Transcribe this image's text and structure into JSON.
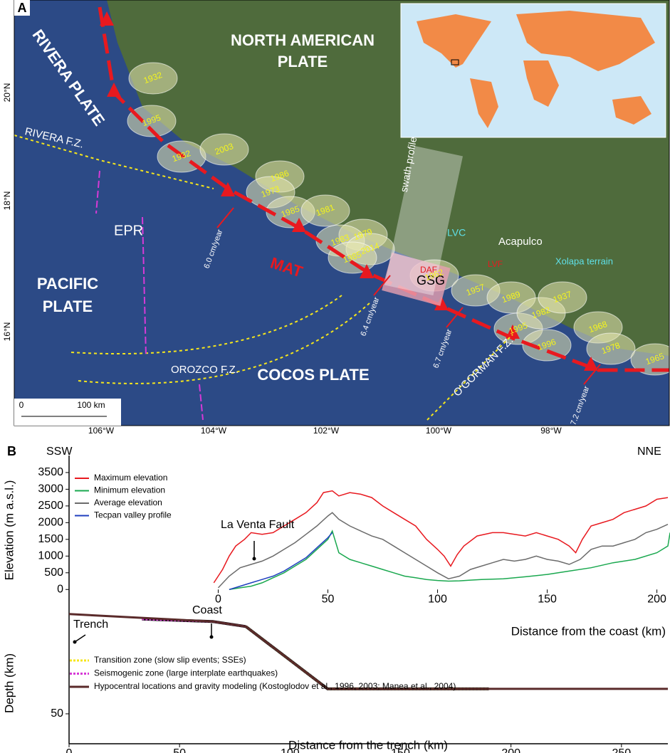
{
  "map": {
    "panel_label": "A",
    "plates": [
      "NORTH AMERICAN",
      "PLATE",
      "RIVERA PLATE",
      "PACIFIC",
      "PLATE",
      "COCOS PLATE"
    ],
    "features": [
      "RIVERA F.Z.",
      "EPR",
      "MAT",
      "OROZCO F.Z.",
      "O'GORMAN F.Z.",
      "GSG",
      "LVC",
      "Acapulco",
      "DAF",
      "LVF",
      "Xolapa terrain",
      "swath profile"
    ],
    "rates": [
      "6.0 cm/year",
      "6.4 cm/year",
      "6.7 cm/year",
      "7.2 cm/year"
    ],
    "years": [
      "1932",
      "1995",
      "1932",
      "2003",
      "1986",
      "1973",
      "1985",
      "1981",
      "1979",
      "1983",
      "2014",
      "1985",
      "1962",
      "1957",
      "1989",
      "1995",
      "1982",
      "1937",
      "1996",
      "1968",
      "1978",
      "1965"
    ],
    "lat_labels": [
      "20°N",
      "18°N",
      "16°N"
    ],
    "lon_labels": [
      "106°W",
      "104°W",
      "102°W",
      "100°W",
      "98°W"
    ],
    "scale_labels": [
      "0",
      "100 km"
    ]
  },
  "chart_data": [
    {
      "type": "line",
      "panel_label": "B",
      "y_label": "Elevation (m a.s.l.)",
      "x_label": "Distance from the coast (km)",
      "annotations": [
        "SSW",
        "NNE",
        "La Venta Fault",
        "Coast",
        "Trench"
      ],
      "xlim": [
        -68,
        205
      ],
      "xticks": [
        0,
        50,
        100,
        150,
        200
      ],
      "ylim": [
        -250,
        3690
      ],
      "yticks": [
        0,
        500,
        1000,
        1500,
        2000,
        2500,
        3000,
        3500
      ],
      "series": [
        {
          "name": "Maximum elevation",
          "color": "#e8191f",
          "x": [
            -2,
            2,
            5,
            8,
            12,
            15,
            20,
            25,
            30,
            35,
            40,
            45,
            48,
            52,
            55,
            60,
            65,
            70,
            75,
            80,
            85,
            90,
            95,
            100,
            103,
            106,
            109,
            112,
            118,
            125,
            130,
            135,
            140,
            145,
            150,
            155,
            160,
            163,
            166,
            170,
            175,
            180,
            185,
            190,
            195,
            200,
            205
          ],
          "values": [
            200,
            600,
            1000,
            1300,
            1500,
            1700,
            1650,
            1700,
            1900,
            2100,
            2300,
            2600,
            2900,
            2950,
            2800,
            2900,
            2850,
            2750,
            2500,
            2300,
            2100,
            1900,
            1500,
            1200,
            1000,
            700,
            1050,
            1300,
            1600,
            1700,
            1700,
            1650,
            1600,
            1700,
            1600,
            1500,
            1300,
            1100,
            1500,
            1900,
            2000,
            2100,
            2300,
            2400,
            2500,
            2700,
            2750
          ]
        },
        {
          "name": "Minimum elevation",
          "color": "#1aa84f",
          "x": [
            5,
            10,
            15,
            20,
            25,
            30,
            35,
            40,
            45,
            50,
            52,
            55,
            60,
            65,
            70,
            75,
            80,
            85,
            90,
            95,
            100,
            105,
            110,
            115,
            120,
            130,
            140,
            150,
            160,
            170,
            180,
            190,
            200,
            205,
            206
          ],
          "values": [
            0,
            50,
            100,
            200,
            350,
            500,
            700,
            900,
            1200,
            1500,
            1750,
            1100,
            900,
            800,
            700,
            600,
            500,
            400,
            350,
            300,
            270,
            250,
            260,
            280,
            300,
            320,
            380,
            450,
            550,
            650,
            800,
            900,
            1100,
            1300,
            1700
          ]
        },
        {
          "name": "Average elevation",
          "color": "#6b6b6b",
          "x": [
            0,
            5,
            10,
            15,
            20,
            25,
            30,
            35,
            40,
            45,
            50,
            52,
            55,
            60,
            65,
            70,
            75,
            80,
            85,
            90,
            95,
            100,
            105,
            110,
            115,
            120,
            125,
            130,
            135,
            140,
            145,
            150,
            155,
            160,
            165,
            170,
            175,
            180,
            185,
            190,
            195,
            200,
            205
          ],
          "values": [
            50,
            400,
            650,
            750,
            850,
            1000,
            1200,
            1400,
            1650,
            1900,
            2200,
            2300,
            2100,
            1900,
            1750,
            1600,
            1500,
            1300,
            1100,
            900,
            700,
            500,
            320,
            400,
            600,
            700,
            800,
            900,
            850,
            900,
            1000,
            900,
            850,
            750,
            900,
            1200,
            1300,
            1300,
            1400,
            1500,
            1700,
            1800,
            1950
          ]
        },
        {
          "name": "Tecpan valley profile",
          "color": "#1f3fbf",
          "x": [
            5,
            10,
            15,
            20,
            25,
            30,
            35,
            40,
            45,
            50,
            52
          ],
          "values": [
            0,
            100,
            200,
            300,
            400,
            550,
            750,
            950,
            1250,
            1550,
            1700
          ]
        }
      ]
    },
    {
      "type": "line",
      "y_label": "Depth (km)",
      "x_label": "Distance from the trench (km)",
      "xlim": [
        0,
        271
      ],
      "xticks": [
        0,
        50,
        100,
        150,
        200,
        250
      ],
      "ylim": [
        62,
        3.5
      ],
      "yticks": [
        50
      ],
      "series": [
        {
          "name": "Transition zone (slow slip events; SSEs)",
          "color": "#f5e61c",
          "line_style": "dotted",
          "x": [
            80,
            117,
            190
          ],
          "values": [
            15,
            40,
            40
          ]
        },
        {
          "name": "Seismogenic zone (large interplate earthquakes)",
          "color": "#d63ad6",
          "line_style": "dotted",
          "x": [
            33,
            65,
            80
          ],
          "values": [
            12,
            13,
            15
          ]
        },
        {
          "name": "Hypocentral locations and gravity modeling (Kostoglodov et al., 1996, 2003; Manea et al., 2004)",
          "color": "#5a2a2a",
          "line_style": "solid",
          "x": [
            0,
            65,
            80,
            117,
            271
          ],
          "values": [
            10,
            13,
            15,
            40,
            40
          ]
        }
      ]
    }
  ]
}
